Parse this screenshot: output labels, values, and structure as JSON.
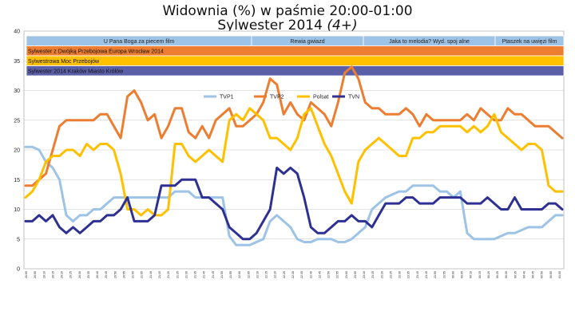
{
  "title_line1": "Widownia (%) w paśmie 20:00-01:00",
  "title_line2_main": "Sylwester 2014 ",
  "title_line2_italic": "(4+)",
  "colors": {
    "TVP1": "#9dc3e6",
    "TVP2": "#ed7d31",
    "Polsat": "#ffc000",
    "TVN": "#2e3192",
    "band_tvp1": "#9dc3e6",
    "band_tvp2": "#ed7d31",
    "band_polsat": "#ffc000",
    "band_tvn": "#5b5fa8"
  },
  "program_bands": [
    {
      "channel": "TVP1",
      "segments": [
        "U Pana Boga za piecem film",
        "Rewia gwiazd",
        "Jaka to melodia? Wyd. spoj   alne",
        "Ptaszek na uwięzi film"
      ]
    },
    {
      "channel": "TVP2",
      "segments": [
        "Sylwester z Dwójką Przebojowa Europa Wrocław 2014"
      ]
    },
    {
      "channel": "Polsat",
      "segments": [
        "Sylwestrowa Moc Przebojów"
      ]
    },
    {
      "channel": "TVN",
      "segments": [
        "Sylwester 2014 Kraków Miasto Królów"
      ]
    }
  ],
  "chart_data": {
    "type": "line",
    "title": "Widownia (%) w paśmie 20:00-01:00 Sylwester 2014 (4+)",
    "xlabel": "",
    "ylabel": "",
    "ylim": [
      0,
      40
    ],
    "yticks": [
      0,
      5,
      10,
      15,
      20,
      25,
      30,
      35,
      40
    ],
    "grid": true,
    "legend_position": "top-center",
    "x_ticks": [
      "20:00",
      "20:05",
      "20:10",
      "20:15",
      "20:20",
      "20:25",
      "20:30",
      "20:35",
      "20:40",
      "20:45",
      "20:50",
      "20:55",
      "21:00",
      "21:05",
      "21:10",
      "21:15",
      "21:20",
      "21:25",
      "21:30",
      "21:35",
      "21:40",
      "21:45",
      "21:50",
      "21:55",
      "22:00",
      "22:05",
      "22:10",
      "22:15",
      "22:20",
      "22:25",
      "22:30",
      "22:35",
      "22:40",
      "22:45",
      "22:50",
      "22:55",
      "23:00",
      "23:05",
      "23:10",
      "23:15",
      "23:20",
      "23:25",
      "23:30",
      "23:35",
      "23:40",
      "23:45",
      "23:50",
      "23:55",
      "00:00",
      "00:05",
      "00:10",
      "00:15",
      "00:20",
      "00:25",
      "00:30",
      "00:35",
      "00:40",
      "00:45",
      "00:50",
      "00:55",
      "01:00"
    ],
    "series": [
      {
        "name": "TVP1",
        "values": [
          20.5,
          20.5,
          20,
          18,
          17,
          15,
          9,
          8,
          9,
          9,
          10,
          10,
          11,
          12,
          12,
          12,
          12,
          12,
          12,
          12,
          12,
          12,
          13,
          13,
          13,
          12,
          12,
          12,
          12,
          12,
          5.5,
          4,
          4,
          4,
          4.5,
          5,
          8,
          9,
          8,
          7,
          5,
          4.5,
          4.5,
          5,
          5,
          5,
          4.5,
          4.5,
          5,
          6,
          7,
          10,
          11,
          12,
          12.5,
          13,
          13,
          14,
          14,
          14,
          14,
          13,
          13,
          12,
          13,
          6,
          5,
          5,
          5,
          5,
          5.5,
          6,
          6,
          6.5,
          7,
          7,
          7,
          8,
          9,
          9
        ]
      },
      {
        "name": "TVP2",
        "values": [
          14,
          14,
          15,
          16,
          20,
          24,
          25,
          25,
          25,
          25,
          25,
          26,
          26,
          24,
          22,
          29,
          30,
          28,
          25,
          26,
          22,
          24,
          27,
          27,
          23,
          22,
          24,
          22,
          25,
          26,
          27,
          24,
          24,
          25,
          26,
          28,
          32,
          31,
          26,
          28,
          26,
          25,
          28,
          27,
          26,
          24,
          28,
          33,
          34,
          32,
          28,
          27,
          27,
          26,
          26,
          26,
          27,
          26,
          24,
          26,
          25,
          25,
          25,
          25,
          25,
          26,
          25,
          27,
          26,
          25,
          25,
          27,
          26,
          26,
          25,
          24,
          24,
          24,
          23,
          22
        ]
      },
      {
        "name": "Polsat",
        "values": [
          12,
          13,
          15,
          18,
          19,
          19,
          20,
          20,
          19,
          21,
          20,
          21,
          21,
          20,
          16,
          10,
          10,
          9,
          10,
          9,
          9,
          10,
          21,
          21,
          19,
          18,
          19,
          20,
          19,
          18,
          25,
          26,
          25,
          27,
          26,
          25,
          22,
          22,
          21,
          20,
          22,
          26,
          27,
          24,
          21,
          19,
          16,
          13,
          11,
          18,
          20,
          21,
          22,
          21,
          20,
          19,
          19,
          22,
          22,
          23,
          23,
          24,
          24,
          24,
          24,
          23,
          24,
          23,
          24,
          26,
          23,
          22,
          21,
          20,
          21,
          21,
          20,
          14,
          13,
          13
        ]
      },
      {
        "name": "TVN",
        "values": [
          8,
          8,
          9,
          8,
          9,
          7,
          6,
          7,
          6,
          7,
          8,
          8,
          9,
          9,
          10,
          12,
          8,
          8,
          8,
          9,
          14,
          14,
          14,
          15,
          15,
          15,
          12,
          12,
          11,
          10,
          7,
          6,
          5,
          5,
          6,
          8,
          10,
          17,
          16,
          17,
          16,
          12,
          7,
          6,
          6,
          7,
          8,
          8,
          9,
          8,
          8,
          7,
          9,
          11,
          11,
          11,
          12,
          12,
          11,
          11,
          11,
          12,
          12,
          12,
          12,
          11,
          11,
          11,
          12,
          11,
          10,
          10,
          12,
          10,
          10,
          10,
          10,
          11,
          11,
          10
        ]
      }
    ],
    "legend": [
      "TVP1",
      "TVP2",
      "Polsat",
      "TVN"
    ]
  }
}
